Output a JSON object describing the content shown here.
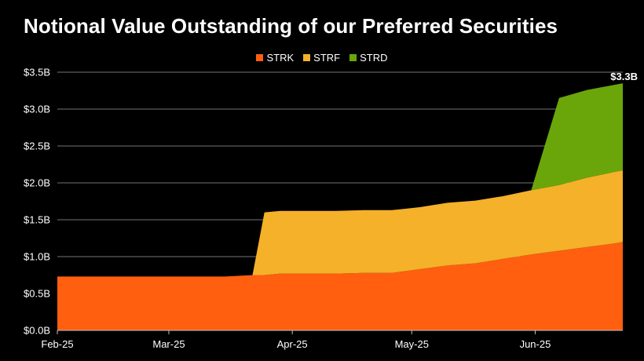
{
  "chart_data": {
    "type": "area",
    "stacked": true,
    "title": "Notional Value Outstanding of our Preferred Securities",
    "y_unit": "$B",
    "ylim": [
      0,
      3.5
    ],
    "y_ticks": [
      {
        "value": 0.0,
        "label": "$0.0B"
      },
      {
        "value": 0.5,
        "label": "$0.5B"
      },
      {
        "value": 1.0,
        "label": "$1.0B"
      },
      {
        "value": 1.5,
        "label": "$1.5B"
      },
      {
        "value": 2.0,
        "label": "$2.0B"
      },
      {
        "value": 2.5,
        "label": "$2.5B"
      },
      {
        "value": 3.0,
        "label": "$3.0B"
      },
      {
        "value": 3.5,
        "label": "$3.5B"
      }
    ],
    "x_ticks": [
      {
        "date": "2025-02-01",
        "label": "Feb-25"
      },
      {
        "date": "2025-03-01",
        "label": "Mar-25"
      },
      {
        "date": "2025-04-01",
        "label": "Apr-25"
      },
      {
        "date": "2025-05-01",
        "label": "May-25"
      },
      {
        "date": "2025-06-01",
        "label": "Jun-25"
      }
    ],
    "xlim": [
      "2025-02-01",
      "2025-06-23"
    ],
    "grid": "horizontal",
    "legend_position": "top-center",
    "x": [
      "2025-02-01",
      "2025-02-08",
      "2025-02-15",
      "2025-02-22",
      "2025-03-01",
      "2025-03-08",
      "2025-03-15",
      "2025-03-22",
      "2025-03-25",
      "2025-03-29",
      "2025-04-05",
      "2025-04-12",
      "2025-04-19",
      "2025-04-26",
      "2025-05-03",
      "2025-05-10",
      "2025-05-17",
      "2025-05-24",
      "2025-05-31",
      "2025-06-07",
      "2025-06-14",
      "2025-06-21",
      "2025-06-23"
    ],
    "series": [
      {
        "name": "STRK",
        "color": "#FF5F0F",
        "values": [
          0.73,
          0.73,
          0.73,
          0.73,
          0.73,
          0.73,
          0.73,
          0.75,
          0.75,
          0.77,
          0.77,
          0.77,
          0.78,
          0.78,
          0.83,
          0.88,
          0.91,
          0.97,
          1.03,
          1.08,
          1.13,
          1.18,
          1.2
        ]
      },
      {
        "name": "STRF",
        "color": "#F4B129",
        "values": [
          0,
          0,
          0,
          0,
          0,
          0,
          0,
          0,
          0.85,
          0.85,
          0.85,
          0.85,
          0.85,
          0.85,
          0.84,
          0.85,
          0.85,
          0.85,
          0.87,
          0.89,
          0.94,
          0.97,
          0.97
        ]
      },
      {
        "name": "STRD",
        "color": "#6AA60A",
        "values": [
          0,
          0,
          0,
          0,
          0,
          0,
          0,
          0,
          0,
          0,
          0,
          0,
          0,
          0,
          0,
          0,
          0,
          0,
          0,
          1.18,
          1.19,
          1.18,
          1.18
        ]
      }
    ],
    "annotations": [
      {
        "label": "$3.3B",
        "date": "2025-06-23",
        "value": 3.35
      }
    ]
  }
}
